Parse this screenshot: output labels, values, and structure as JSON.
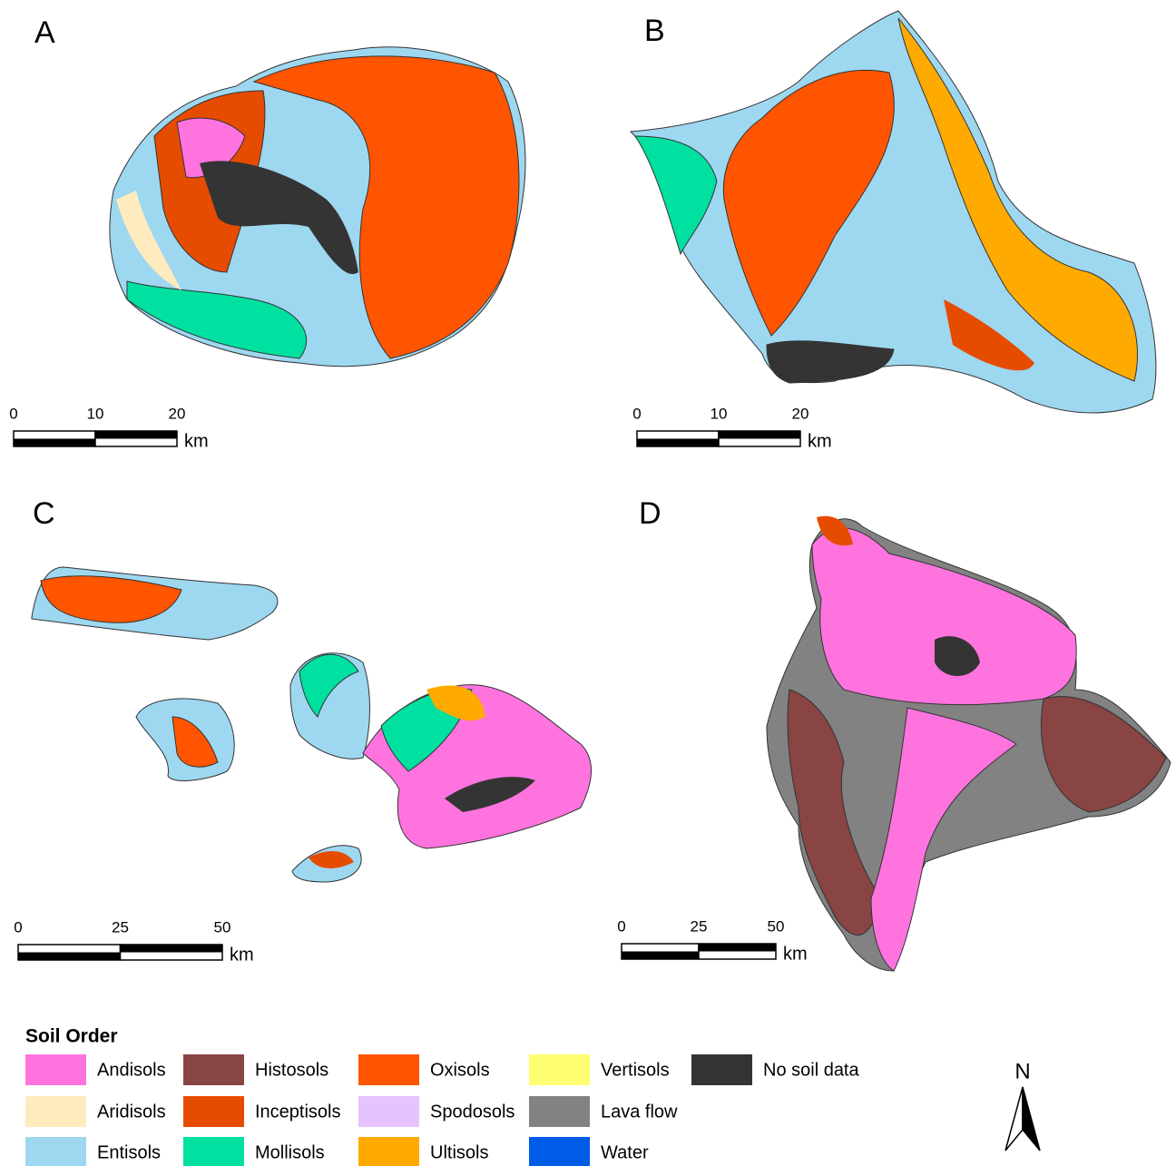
{
  "panels": [
    {
      "label": "A",
      "scale": {
        "ticks": [
          0,
          10,
          20
        ],
        "unit": "km"
      }
    },
    {
      "label": "B",
      "scale": {
        "ticks": [
          0,
          10,
          20
        ],
        "unit": "km"
      }
    },
    {
      "label": "C",
      "scale": {
        "ticks": [
          0,
          25,
          50
        ],
        "unit": "km"
      }
    },
    {
      "label": "D",
      "scale": {
        "ticks": [
          0,
          25,
          50
        ],
        "unit": "km"
      }
    }
  ],
  "legend": {
    "title": "Soil Order",
    "items": [
      {
        "name": "Andisols",
        "color": "#ff73df"
      },
      {
        "name": "Aridisols",
        "color": "#ffebbe"
      },
      {
        "name": "Entisols",
        "color": "#9ed7f0"
      },
      {
        "name": "Histosols",
        "color": "#894444"
      },
      {
        "name": "Inceptisols",
        "color": "#e64c00"
      },
      {
        "name": "Mollisols",
        "color": "#00e0a0"
      },
      {
        "name": "Oxisols",
        "color": "#ff5500"
      },
      {
        "name": "Spodosols",
        "color": "#e6c2ff"
      },
      {
        "name": "Ultisols",
        "color": "#ffaa00"
      },
      {
        "name": "Vertisols",
        "color": "#ffff73"
      },
      {
        "name": "Lava flow",
        "color": "#828282"
      },
      {
        "name": "Water",
        "color": "#005ce6"
      },
      {
        "name": "No soil data",
        "color": "#343434"
      }
    ]
  },
  "north": "N"
}
